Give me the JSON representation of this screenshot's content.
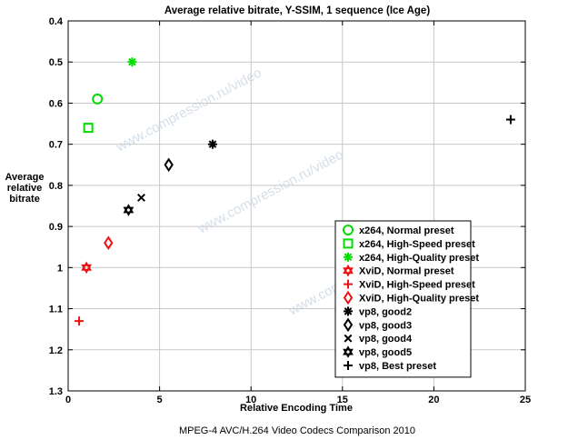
{
  "chart_data": {
    "type": "scatter",
    "title": "Average relative bitrate, Y-SSIM, 1 sequence (Ice Age)",
    "xlabel": "Relative Encoding Time",
    "ylabel": [
      "Average",
      "relative",
      "bitrate"
    ],
    "xlim": [
      0,
      25
    ],
    "ylim": [
      0.4,
      1.3
    ],
    "y_inverted": true,
    "xticks": [
      0,
      5,
      10,
      15,
      20,
      25
    ],
    "yticks": [
      0.4,
      0.5,
      0.6,
      0.7,
      0.8,
      0.9,
      1,
      1.1,
      1.2,
      1.3
    ],
    "grid": true,
    "legend_position": "bottom-right",
    "series": [
      {
        "name": "x264, Normal preset",
        "marker": "circle",
        "color": "#00dd00",
        "x": 1.6,
        "y": 0.59
      },
      {
        "name": "x264, High-Speed preset",
        "marker": "square",
        "color": "#00dd00",
        "x": 1.1,
        "y": 0.66
      },
      {
        "name": "x264, High-Quality preset",
        "marker": "asterisk",
        "color": "#00dd00",
        "x": 3.5,
        "y": 0.5
      },
      {
        "name": "XviD, Normal preset",
        "marker": "hexagram",
        "color": "#ee1111",
        "x": 1.0,
        "y": 1.0
      },
      {
        "name": "XviD, High-Speed preset",
        "marker": "plus",
        "color": "#ee1111",
        "x": 0.6,
        "y": 1.13
      },
      {
        "name": "XviD, High-Quality preset",
        "marker": "diamond",
        "color": "#ee1111",
        "x": 2.2,
        "y": 0.94
      },
      {
        "name": "vp8, good2",
        "marker": "asterisk",
        "color": "#000000",
        "x": 7.9,
        "y": 0.7
      },
      {
        "name": "vp8, good3",
        "marker": "diamond",
        "color": "#000000",
        "x": 5.5,
        "y": 0.75
      },
      {
        "name": "vp8, good4",
        "marker": "x",
        "color": "#000000",
        "x": 4.0,
        "y": 0.83
      },
      {
        "name": "vp8, good5",
        "marker": "hexagram",
        "color": "#000000",
        "x": 3.3,
        "y": 0.86
      },
      {
        "name": "vp8, Best preset",
        "marker": "plus",
        "color": "#000000",
        "x": 24.2,
        "y": 0.64
      }
    ]
  },
  "watermark": "www.compression.ru/video",
  "footer": "MPEG-4 AVC/H.264 Video Codecs Comparison 2010"
}
